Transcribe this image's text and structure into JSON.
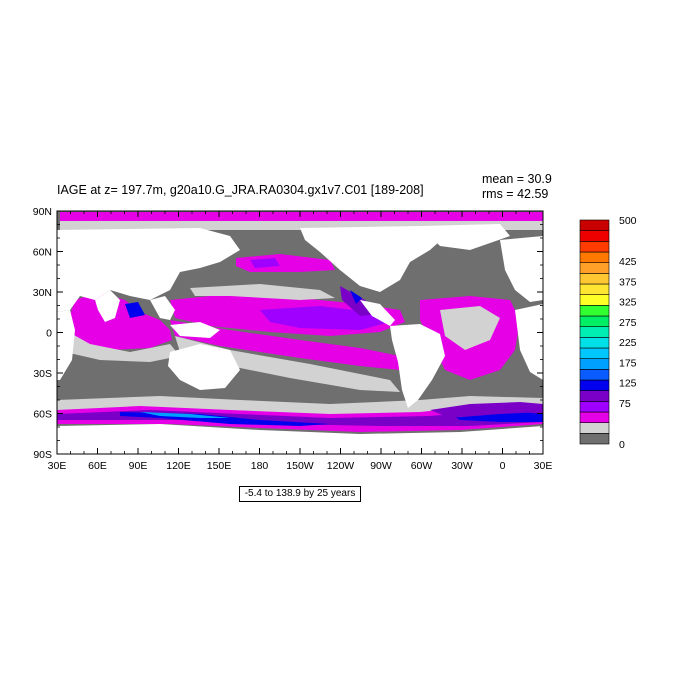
{
  "title": "IAGE at z= 197.7m, g20a10.G_JRA.RA0304.gx1v7.C01 [189-208]",
  "stats": {
    "mean_label": "mean = 30.9",
    "rms_label": "rms = 42.59"
  },
  "range_label": "-5.4 to 138.9 by 25 years",
  "chart_data": {
    "type": "heatmap",
    "title": "IAGE at z= 197.7m, g20a10.G_JRA.RA0304.gx1v7.C01 [189-208]",
    "map_projection": "cylindrical equidistant, 30E to 30E",
    "x_ticks": [
      "30E",
      "60E",
      "90E",
      "120E",
      "150E",
      "180",
      "150W",
      "120W",
      "90W",
      "60W",
      "30W",
      "0",
      "30E"
    ],
    "x_tick_lons": [
      30,
      60,
      90,
      120,
      150,
      180,
      210,
      240,
      270,
      300,
      330,
      360,
      390
    ],
    "y_ticks": [
      "90N",
      "60N",
      "30N",
      "0",
      "30S",
      "60S",
      "90S"
    ],
    "y_tick_lats": [
      90,
      60,
      30,
      0,
      -30,
      -60,
      -90
    ],
    "colorbar": {
      "levels": [
        0,
        25,
        50,
        75,
        100,
        125,
        150,
        175,
        200,
        225,
        250,
        275,
        300,
        325,
        350,
        375,
        400,
        425,
        450,
        475,
        500
      ],
      "tick_labels": [
        "500",
        "425",
        "375",
        "325",
        "275",
        "225",
        "175",
        "125",
        "75",
        "0"
      ],
      "tick_values": [
        500,
        425,
        375,
        325,
        275,
        225,
        175,
        125,
        75,
        0
      ],
      "colors": [
        "#6f6f6f",
        "#d2d2d2",
        "#e600e6",
        "#a000ff",
        "#7a00c8",
        "#0000ee",
        "#0a5cff",
        "#00a0ff",
        "#00c8ff",
        "#00e0e6",
        "#00eeb4",
        "#00ee64",
        "#32ff32",
        "#ffff28",
        "#ffe632",
        "#ffc832",
        "#ffa028",
        "#ff7800",
        "#ff3c00",
        "#ee0000",
        "#c80000"
      ]
    },
    "regions": {
      "deep_water": "#6f6f6f",
      "young_water": "#d2d2d2",
      "land": "#ffffff"
    },
    "stats": {
      "mean": 30.9,
      "rms": 42.59
    },
    "contour_range": {
      "min": -5.4,
      "max": 138.9,
      "interval": 25,
      "unit": "years"
    }
  }
}
